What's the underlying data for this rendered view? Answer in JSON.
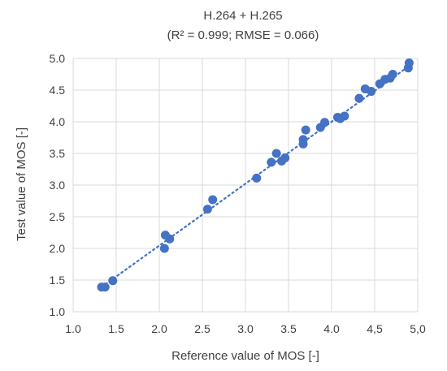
{
  "chart_data": {
    "type": "scatter",
    "title": "H.264 + H.265",
    "subtitle": "(R² = 0.999; RMSE = 0.066)",
    "xlabel": "Reference value of MOS [-]",
    "ylabel": "Test value of MOS [-]",
    "xlim": [
      1.0,
      5.0
    ],
    "ylim": [
      1.0,
      5.0
    ],
    "xticks": [
      "1.0",
      "1.5",
      "2.0",
      "2.5",
      "3.0",
      "3.5",
      "4.0",
      "4,5",
      "5,0"
    ],
    "yticks": [
      "1.0",
      "1.5",
      "2.0",
      "2.5",
      "3.0",
      "3.5",
      "4.0",
      "4.5",
      "5.0"
    ],
    "grid": true,
    "trendline": {
      "style": "dotted",
      "x": [
        1.33,
        4.9
      ],
      "y": [
        1.39,
        4.88
      ]
    },
    "color": "#4472c4",
    "points": [
      [
        1.33,
        1.39
      ],
      [
        1.37,
        1.39
      ],
      [
        1.46,
        1.49
      ],
      [
        2.06,
        2.0
      ],
      [
        2.07,
        2.21
      ],
      [
        2.12,
        2.15
      ],
      [
        2.56,
        2.62
      ],
      [
        2.62,
        2.77
      ],
      [
        3.13,
        3.11
      ],
      [
        3.3,
        3.36
      ],
      [
        3.36,
        3.5
      ],
      [
        3.42,
        3.38
      ],
      [
        3.46,
        3.43
      ],
      [
        3.67,
        3.65
      ],
      [
        3.67,
        3.72
      ],
      [
        3.7,
        3.87
      ],
      [
        3.87,
        3.91
      ],
      [
        3.92,
        3.99
      ],
      [
        4.07,
        4.07
      ],
      [
        4.1,
        4.05
      ],
      [
        4.15,
        4.09
      ],
      [
        4.32,
        4.37
      ],
      [
        4.39,
        4.52
      ],
      [
        4.46,
        4.48
      ],
      [
        4.56,
        4.6
      ],
      [
        4.62,
        4.67
      ],
      [
        4.68,
        4.69
      ],
      [
        4.71,
        4.75
      ],
      [
        4.89,
        4.85
      ],
      [
        4.9,
        4.93
      ]
    ]
  }
}
